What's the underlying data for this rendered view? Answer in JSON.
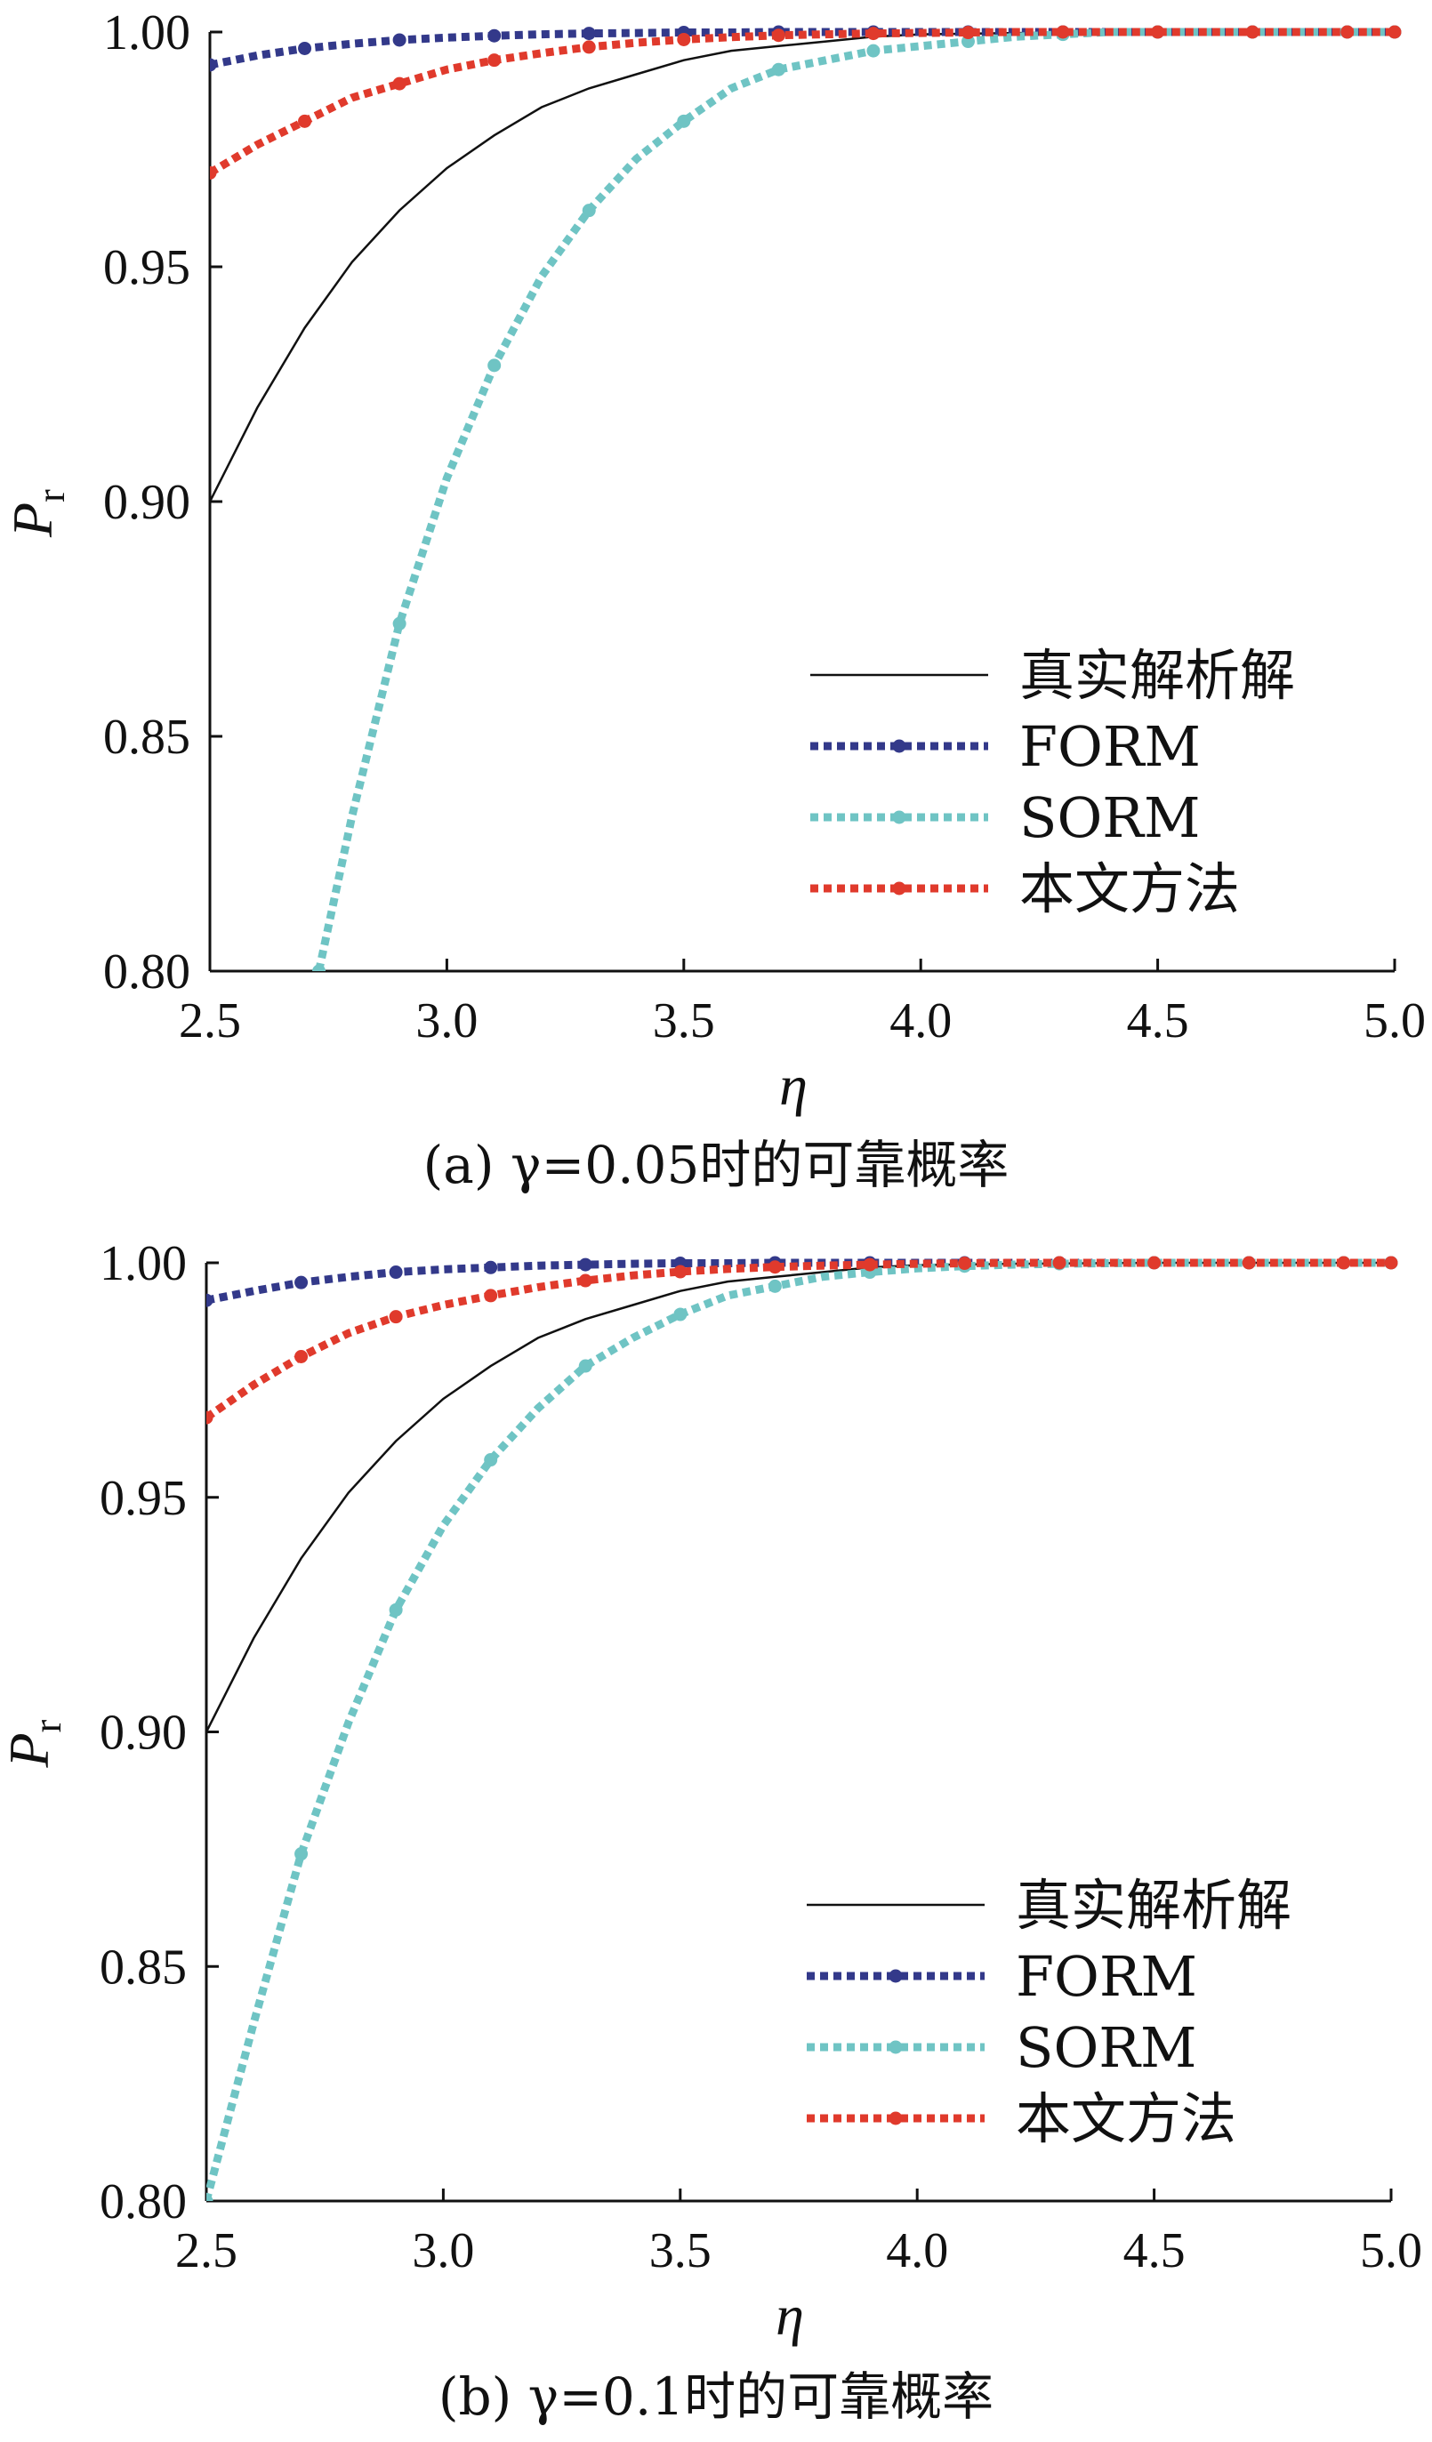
{
  "chart_data": [
    {
      "type": "line",
      "caption_prefix": "(a)",
      "caption_text": "γ=0.05时的可靠概率",
      "xlabel": "η",
      "ylabel_main": "P",
      "ylabel_sub": "r",
      "xlim": [
        2.5,
        5.0
      ],
      "ylim": [
        0.8,
        1.0
      ],
      "x_ticks": [
        "2.5",
        "3.0",
        "3.5",
        "4.0",
        "4.5",
        "5.0"
      ],
      "y_ticks": [
        "0.80",
        "0.85",
        "0.90",
        "0.95",
        "1.00"
      ],
      "legend_position": "bottom-right",
      "series": [
        {
          "name": "真实解析解",
          "style": "solid",
          "color": "#111111",
          "x": [
            2.5,
            2.6,
            2.7,
            2.8,
            2.9,
            3.0,
            3.1,
            3.2,
            3.3,
            3.4,
            3.5,
            3.6,
            3.7,
            3.8,
            3.9,
            4.0,
            4.2,
            4.5,
            4.8,
            5.0
          ],
          "y": [
            0.9,
            0.92,
            0.937,
            0.951,
            0.962,
            0.971,
            0.978,
            0.984,
            0.988,
            0.991,
            0.994,
            0.996,
            0.997,
            0.998,
            0.999,
            0.9995,
            0.9998,
            1.0,
            1.0,
            1.0
          ]
        },
        {
          "name": "FORM",
          "style": "dotted",
          "color": "#33398a",
          "x": [
            2.5,
            2.6,
            2.7,
            2.8,
            2.9,
            3.0,
            3.1,
            3.2,
            3.3,
            3.4,
            3.5,
            3.6,
            3.7,
            3.8,
            3.9,
            4.0,
            4.1,
            4.2,
            4.3,
            4.4,
            4.5,
            4.6,
            4.7,
            4.8,
            4.9,
            5.0
          ],
          "y": [
            0.993,
            0.995,
            0.9965,
            0.9975,
            0.9983,
            0.9988,
            0.9992,
            0.9995,
            0.9997,
            0.9998,
            0.9999,
            0.9999,
            1.0,
            1.0,
            1.0,
            1.0,
            1.0,
            1.0,
            1.0,
            1.0,
            1.0,
            1.0,
            1.0,
            1.0,
            1.0,
            1.0
          ]
        },
        {
          "name": "SORM",
          "style": "dotted",
          "color": "#6fc4c4",
          "x": [
            2.73,
            2.8,
            2.9,
            3.0,
            3.1,
            3.2,
            3.3,
            3.4,
            3.5,
            3.6,
            3.7,
            3.8,
            3.9,
            4.0,
            4.1,
            4.2,
            4.3,
            4.4,
            4.5,
            4.6,
            4.7,
            4.8,
            4.9,
            5.0
          ],
          "y": [
            0.8,
            0.833,
            0.874,
            0.905,
            0.929,
            0.948,
            0.962,
            0.973,
            0.981,
            0.988,
            0.992,
            0.994,
            0.996,
            0.997,
            0.998,
            0.999,
            0.9995,
            1.0,
            1.0,
            1.0,
            1.0,
            1.0,
            1.0,
            1.0
          ]
        },
        {
          "name": "本文方法",
          "style": "dotted",
          "color": "#e03a2c",
          "x": [
            2.5,
            2.6,
            2.7,
            2.8,
            2.9,
            3.0,
            3.1,
            3.2,
            3.3,
            3.4,
            3.5,
            3.6,
            3.7,
            3.8,
            3.9,
            4.0,
            4.1,
            4.2,
            4.3,
            4.4,
            4.5,
            4.6,
            4.7,
            4.8,
            4.9,
            5.0
          ],
          "y": [
            0.97,
            0.976,
            0.981,
            0.986,
            0.989,
            0.992,
            0.994,
            0.9955,
            0.9968,
            0.9977,
            0.9984,
            0.9989,
            0.9993,
            0.9995,
            0.9997,
            0.9998,
            0.9999,
            1.0,
            1.0,
            1.0,
            1.0,
            1.0,
            1.0,
            1.0,
            1.0,
            1.0
          ]
        }
      ]
    },
    {
      "type": "line",
      "caption_prefix": "(b)",
      "caption_text": "γ=0.1时的可靠概率",
      "xlabel": "η",
      "ylabel_main": "P",
      "ylabel_sub": "r",
      "xlim": [
        2.5,
        5.0
      ],
      "ylim": [
        0.8,
        1.0
      ],
      "x_ticks": [
        "2.5",
        "3.0",
        "3.5",
        "4.0",
        "4.5",
        "5.0"
      ],
      "y_ticks": [
        "0.80",
        "0.85",
        "0.90",
        "0.95",
        "1.00"
      ],
      "legend_position": "bottom-right",
      "series": [
        {
          "name": "真实解析解",
          "style": "solid",
          "color": "#111111",
          "x": [
            2.5,
            2.6,
            2.7,
            2.8,
            2.9,
            3.0,
            3.1,
            3.2,
            3.3,
            3.4,
            3.5,
            3.6,
            3.7,
            3.8,
            3.9,
            4.0,
            4.2,
            4.5,
            4.8,
            5.0
          ],
          "y": [
            0.9,
            0.92,
            0.937,
            0.951,
            0.962,
            0.971,
            0.978,
            0.984,
            0.988,
            0.991,
            0.994,
            0.996,
            0.997,
            0.998,
            0.999,
            0.9995,
            0.9998,
            1.0,
            1.0,
            1.0
          ]
        },
        {
          "name": "FORM",
          "style": "dotted",
          "color": "#33398a",
          "x": [
            2.5,
            2.6,
            2.7,
            2.8,
            2.9,
            3.0,
            3.1,
            3.2,
            3.3,
            3.4,
            3.5,
            3.6,
            3.7,
            3.8,
            3.9,
            4.0,
            4.1,
            4.2,
            4.3,
            4.4,
            4.5,
            4.6,
            4.7,
            4.8,
            4.9,
            5.0
          ],
          "y": [
            0.992,
            0.994,
            0.9958,
            0.997,
            0.998,
            0.9986,
            0.999,
            0.9994,
            0.9996,
            0.9998,
            0.9999,
            0.9999,
            1.0,
            1.0,
            1.0,
            1.0,
            1.0,
            1.0,
            1.0,
            1.0,
            1.0,
            1.0,
            1.0,
            1.0,
            1.0,
            1.0
          ]
        },
        {
          "name": "SORM",
          "style": "dotted",
          "color": "#6fc4c4",
          "x": [
            2.5,
            2.6,
            2.7,
            2.8,
            2.9,
            3.0,
            3.1,
            3.2,
            3.3,
            3.4,
            3.5,
            3.6,
            3.7,
            3.8,
            3.9,
            4.0,
            4.1,
            4.2,
            4.3,
            4.4,
            4.5,
            4.6,
            4.7,
            4.8,
            4.9,
            5.0
          ],
          "y": [
            0.8,
            0.838,
            0.874,
            0.902,
            0.926,
            0.944,
            0.958,
            0.969,
            0.978,
            0.984,
            0.989,
            0.993,
            0.995,
            0.997,
            0.998,
            0.9988,
            0.9993,
            0.9996,
            0.9998,
            0.9999,
            1.0,
            1.0,
            1.0,
            1.0,
            1.0,
            1.0
          ]
        },
        {
          "name": "本文方法",
          "style": "dotted",
          "color": "#e03a2c",
          "x": [
            2.5,
            2.6,
            2.7,
            2.8,
            2.9,
            3.0,
            3.1,
            3.2,
            3.3,
            3.4,
            3.5,
            3.6,
            3.7,
            3.8,
            3.9,
            4.0,
            4.1,
            4.2,
            4.3,
            4.4,
            4.5,
            4.6,
            4.7,
            4.8,
            4.9,
            5.0
          ],
          "y": [
            0.967,
            0.974,
            0.98,
            0.985,
            0.9885,
            0.991,
            0.993,
            0.9948,
            0.9962,
            0.9973,
            0.9981,
            0.9987,
            0.9991,
            0.9994,
            0.9996,
            0.9998,
            0.9999,
            1.0,
            1.0,
            1.0,
            1.0,
            1.0,
            1.0,
            1.0,
            1.0,
            1.0
          ]
        }
      ]
    }
  ]
}
